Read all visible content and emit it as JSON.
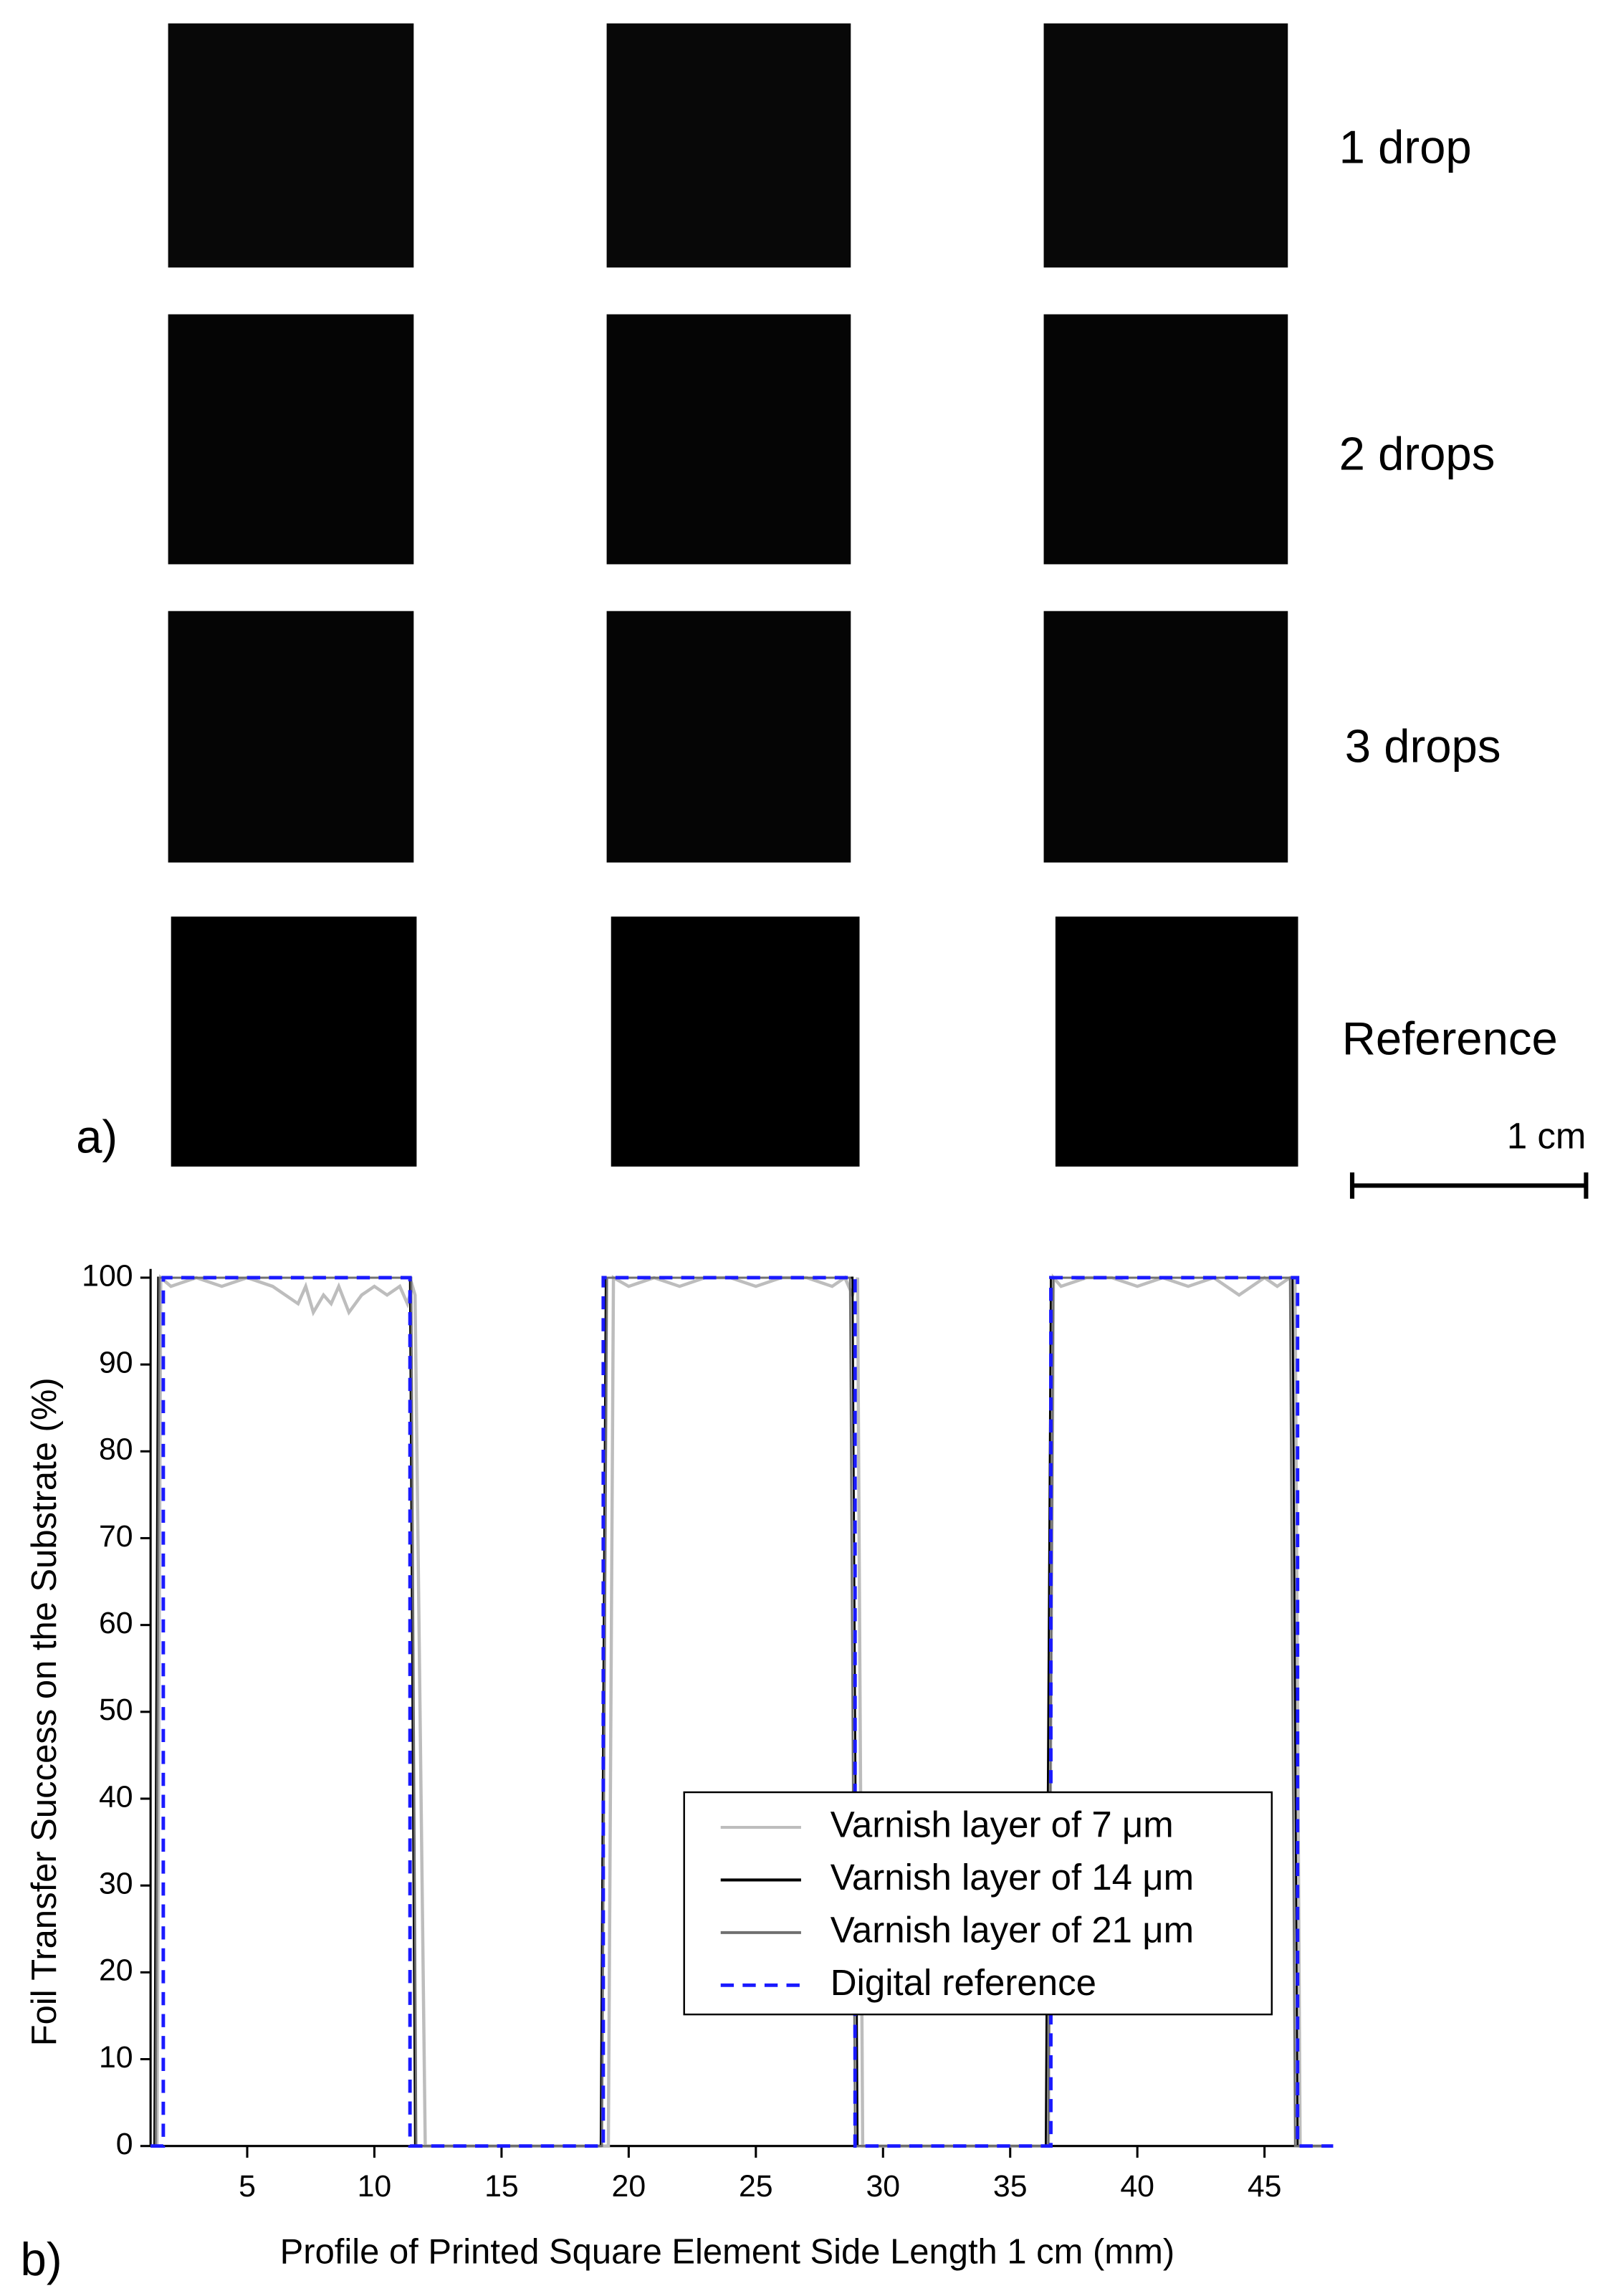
{
  "panel_a": {
    "label": "a)",
    "rows": [
      "1 drop",
      "2 drops",
      "3 drops",
      "Reference"
    ],
    "scale_bar": "1 cm"
  },
  "panel_b": {
    "label": "b)"
  },
  "chart_data": {
    "type": "line",
    "xlabel": "Profile of Printed Square Element Side Length 1 cm (mm)",
    "ylabel": "Foil Transfer Success on the Substrate (%)",
    "xlim": [
      1.2,
      47.7
    ],
    "ylim": [
      0,
      100
    ],
    "xticks": [
      5,
      10,
      15,
      20,
      25,
      30,
      35,
      40,
      45
    ],
    "yticks": [
      0,
      10,
      20,
      30,
      40,
      50,
      60,
      70,
      80,
      90,
      100
    ],
    "legend": "lower right",
    "series": [
      {
        "name": "Varnish layer of 7 μm",
        "color": "#bdbdbd",
        "dashed": false,
        "x": [
          1.2,
          1.45,
          1.6,
          2,
          3,
          4,
          5,
          6,
          6.5,
          7,
          7.3,
          7.6,
          8,
          8.3,
          8.6,
          9,
          9.5,
          10,
          10.5,
          11,
          11.3,
          11.5,
          11.6,
          12,
          19,
          19.2,
          19.4,
          20,
          21,
          22,
          23,
          24,
          25,
          26,
          27,
          28,
          28.5,
          28.8,
          29,
          29.2,
          30,
          36.5,
          36.7,
          37,
          38,
          39,
          40,
          41,
          42,
          43,
          44,
          45,
          45.5,
          46,
          46.2,
          46.4,
          47.7
        ],
        "values": [
          0,
          0,
          100,
          99,
          100,
          99,
          100,
          99,
          98,
          97,
          99,
          96,
          98,
          97,
          99,
          96,
          98,
          99,
          98,
          99,
          97,
          99,
          98,
          0,
          0,
          0,
          100,
          99,
          100,
          99,
          100,
          100,
          99,
          100,
          100,
          99,
          100,
          98,
          100,
          0,
          0,
          0,
          100,
          99,
          100,
          100,
          99,
          100,
          99,
          100,
          98,
          100,
          99,
          100,
          100,
          0,
          0
        ]
      },
      {
        "name": "Varnish layer of 14 μm",
        "color": "#000000",
        "dashed": false,
        "x": [
          1.2,
          1.35,
          1.5,
          11.4,
          11.6,
          18.9,
          19.1,
          28.8,
          29.0,
          36.4,
          36.6,
          46.1,
          46.3,
          47.7
        ],
        "values": [
          0,
          0,
          100,
          100,
          0,
          0,
          100,
          100,
          0,
          0,
          100,
          100,
          0,
          0
        ]
      },
      {
        "name": "Varnish layer of 21 μm",
        "color": "#707070",
        "dashed": false,
        "x": [
          1.2,
          1.4,
          1.55,
          11.45,
          11.65,
          18.95,
          19.15,
          28.7,
          28.9,
          36.5,
          36.7,
          46.0,
          46.2,
          47.7
        ],
        "values": [
          0,
          0,
          100,
          100,
          0,
          0,
          100,
          100,
          0,
          0,
          100,
          100,
          0,
          0
        ]
      },
      {
        "name": "Digital reference",
        "color": "#1a1aff",
        "dashed": true,
        "x": [
          1.2,
          1.7,
          1.7,
          11.4,
          11.4,
          19.0,
          19.0,
          28.9,
          28.9,
          36.6,
          36.6,
          46.3,
          46.3,
          47.7
        ],
        "values": [
          0,
          0,
          100,
          100,
          0,
          0,
          100,
          100,
          0,
          0,
          100,
          100,
          0,
          0
        ]
      }
    ]
  }
}
